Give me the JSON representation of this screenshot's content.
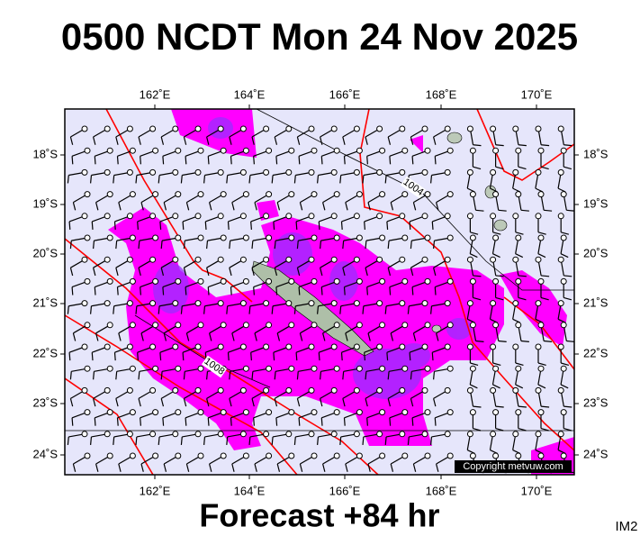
{
  "header": {
    "title": "0500 NCDT Mon 24 Nov 2025"
  },
  "map": {
    "lon_labels": [
      "162˚E",
      "164˚E",
      "166˚E",
      "168˚E",
      "170˚E"
    ],
    "lat_labels": [
      "18˚S",
      "19˚S",
      "20˚S",
      "21˚S",
      "22˚S",
      "23˚S",
      "24˚S"
    ],
    "contour_labels": [
      "1004",
      "1008"
    ],
    "copyright": "Copyright metvuw.com"
  },
  "footer": {
    "forecast": "Forecast +84 hr",
    "code": "IM2"
  }
}
